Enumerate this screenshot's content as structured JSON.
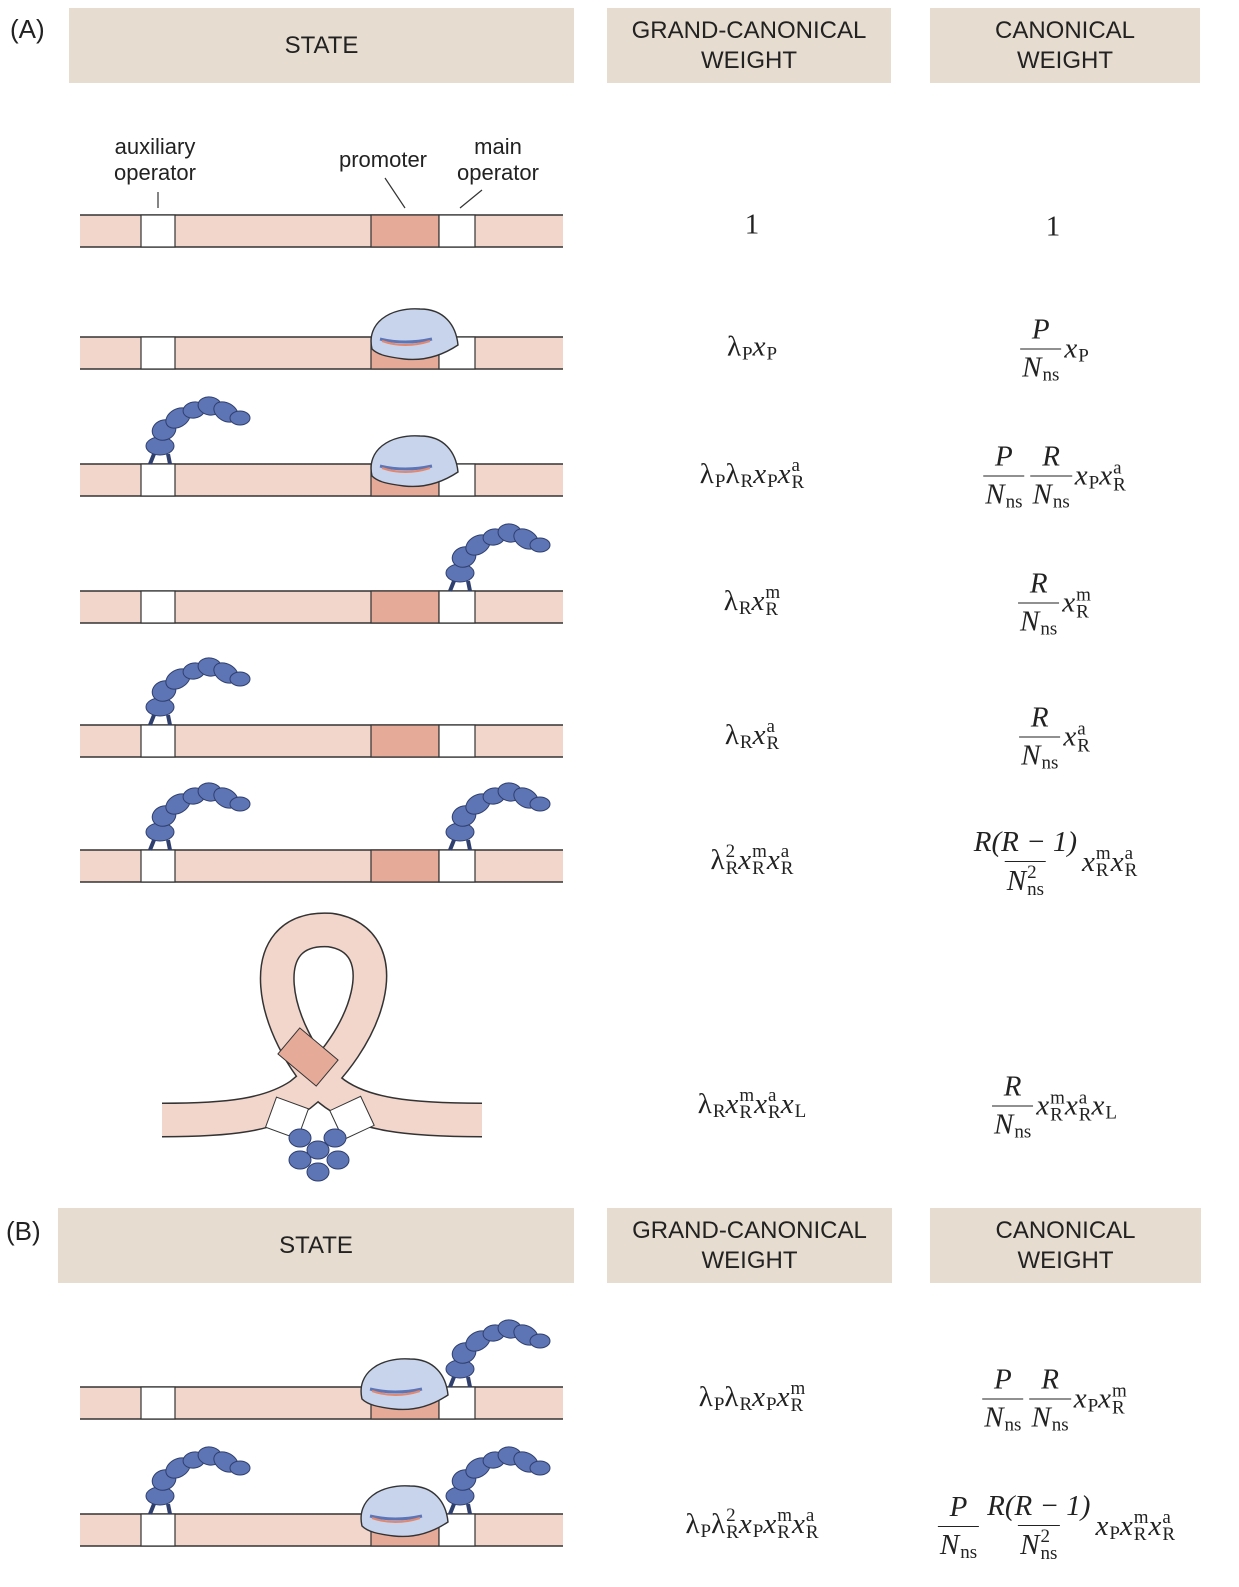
{
  "panels": [
    {
      "label": "(A)",
      "headers": [
        "STATE",
        "GRAND-CANONICAL WEIGHT",
        "CANONICAL WEIGHT"
      ],
      "annotations": [
        "auxiliary operator",
        "promoter",
        "main operator"
      ],
      "rows": [
        {
          "grand_canonical": [
            {
              "base": "1"
            }
          ],
          "canonical": [
            {
              "base": "1"
            }
          ]
        },
        {
          "grand_canonical": [
            {
              "base": "λ",
              "sub": "P"
            },
            {
              "base": "x",
              "sub": "P"
            }
          ],
          "canonical": [
            {
              "num": [
                {
                  "base": "P"
                }
              ],
              "den": [
                {
                  "base": "N",
                  "sub": "ns"
                }
              ]
            },
            {
              "base": "x",
              "sub": "P"
            }
          ]
        },
        {
          "grand_canonical": [
            {
              "base": "λ",
              "sub": "P"
            },
            {
              "base": "λ",
              "sub": "R"
            },
            {
              "base": "x",
              "sub": "P"
            },
            {
              "base": "x",
              "sub": "R",
              "sup": "a"
            }
          ],
          "canonical": [
            {
              "num": [
                {
                  "base": "P"
                }
              ],
              "den": [
                {
                  "base": "N",
                  "sub": "ns"
                }
              ]
            },
            {
              "num": [
                {
                  "base": "R"
                }
              ],
              "den": [
                {
                  "base": "N",
                  "sub": "ns"
                }
              ]
            },
            {
              "base": "x",
              "sub": "P"
            },
            {
              "base": "x",
              "sub": "R",
              "sup": "a"
            }
          ]
        },
        {
          "grand_canonical": [
            {
              "base": "λ",
              "sub": "R"
            },
            {
              "base": "x",
              "sub": "R",
              "sup": "m"
            }
          ],
          "canonical": [
            {
              "num": [
                {
                  "base": "R"
                }
              ],
              "den": [
                {
                  "base": "N",
                  "sub": "ns"
                }
              ]
            },
            {
              "base": "x",
              "sub": "R",
              "sup": "m"
            }
          ]
        },
        {
          "grand_canonical": [
            {
              "base": "λ",
              "sub": "R"
            },
            {
              "base": "x",
              "sub": "R",
              "sup": "a"
            }
          ],
          "canonical": [
            {
              "num": [
                {
                  "base": "R"
                }
              ],
              "den": [
                {
                  "base": "N",
                  "sub": "ns"
                }
              ]
            },
            {
              "base": "x",
              "sub": "R",
              "sup": "a"
            }
          ]
        },
        {
          "grand_canonical": [
            {
              "base": "λ",
              "sub": "R",
              "sup": "2"
            },
            {
              "base": "x",
              "sub": "R",
              "sup": "m"
            },
            {
              "base": "x",
              "sub": "R",
              "sup": "a"
            }
          ],
          "canonical": [
            {
              "num": [
                {
                  "base": "R(R − 1)"
                }
              ],
              "den": [
                {
                  "base": "N",
                  "sub": "ns",
                  "sup": "2"
                }
              ]
            },
            {
              "base": "x",
              "sub": "R",
              "sup": "m"
            },
            {
              "base": "x",
              "sub": "R",
              "sup": "a"
            }
          ]
        },
        {
          "grand_canonical": [
            {
              "base": "λ",
              "sub": "R"
            },
            {
              "base": "x",
              "sub": "R",
              "sup": "m"
            },
            {
              "base": "x",
              "sub": "R",
              "sup": "a"
            },
            {
              "base": "x",
              "sub": "L"
            }
          ],
          "canonical": [
            {
              "num": [
                {
                  "base": "R"
                }
              ],
              "den": [
                {
                  "base": "N",
                  "sub": "ns"
                }
              ]
            },
            {
              "base": "x",
              "sub": "R",
              "sup": "m"
            },
            {
              "base": "x",
              "sub": "R",
              "sup": "a"
            },
            {
              "base": "x",
              "sub": "L"
            }
          ]
        }
      ]
    },
    {
      "label": "(B)",
      "headers": [
        "STATE",
        "GRAND-CANONICAL WEIGHT",
        "CANONICAL WEIGHT"
      ],
      "rows": [
        {
          "grand_canonical": [
            {
              "base": "λ",
              "sub": "P"
            },
            {
              "base": "λ",
              "sub": "R"
            },
            {
              "base": "x",
              "sub": "P"
            },
            {
              "base": "x",
              "sub": "R",
              "sup": "m"
            }
          ],
          "canonical": [
            {
              "num": [
                {
                  "base": "P"
                }
              ],
              "den": [
                {
                  "base": "N",
                  "sub": "ns"
                }
              ]
            },
            {
              "num": [
                {
                  "base": "R"
                }
              ],
              "den": [
                {
                  "base": "N",
                  "sub": "ns"
                }
              ]
            },
            {
              "base": "x",
              "sub": "P"
            },
            {
              "base": "x",
              "sub": "R",
              "sup": "m"
            }
          ]
        },
        {
          "grand_canonical": [
            {
              "base": "λ",
              "sub": "P"
            },
            {
              "base": "λ",
              "sub": "R",
              "sup": "2"
            },
            {
              "base": "x",
              "sub": "P"
            },
            {
              "base": "x",
              "sub": "R",
              "sup": "m"
            },
            {
              "base": "x",
              "sub": "R",
              "sup": "a"
            }
          ],
          "canonical": [
            {
              "num": [
                {
                  "base": "P"
                }
              ],
              "den": [
                {
                  "base": "N",
                  "sub": "ns"
                }
              ]
            },
            {
              "num": [
                {
                  "base": "R(R − 1)"
                }
              ],
              "den": [
                {
                  "base": "N",
                  "sub": "ns",
                  "sup": "2"
                }
              ]
            },
            {
              "base": "x",
              "sub": "P"
            },
            {
              "base": "x",
              "sub": "R",
              "sup": "m"
            },
            {
              "base": "x",
              "sub": "R",
              "sup": "a"
            }
          ]
        }
      ]
    }
  ]
}
